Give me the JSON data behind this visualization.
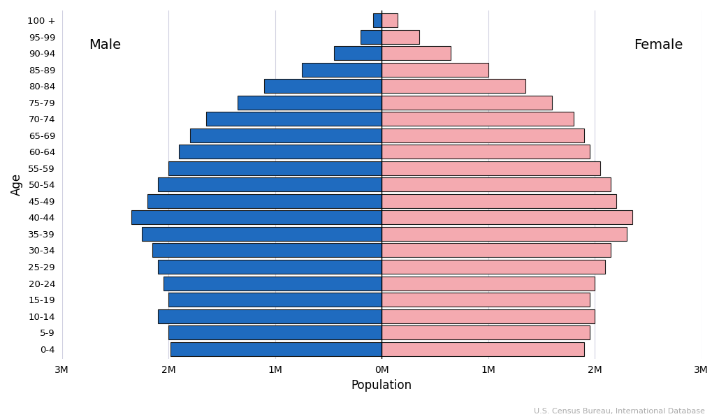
{
  "age_groups": [
    "0-4",
    "5-9",
    "10-14",
    "15-19",
    "20-24",
    "25-29",
    "30-34",
    "35-39",
    "40-44",
    "45-49",
    "50-54",
    "55-59",
    "60-64",
    "65-69",
    "70-74",
    "75-79",
    "80-84",
    "85-89",
    "90-94",
    "95-99",
    "100 +"
  ],
  "male": [
    1980000,
    2000000,
    2100000,
    2000000,
    2050000,
    2100000,
    2150000,
    2250000,
    2350000,
    2200000,
    2100000,
    2000000,
    1900000,
    1800000,
    1650000,
    1350000,
    1100000,
    750000,
    450000,
    200000,
    80000
  ],
  "female": [
    1900000,
    1950000,
    2000000,
    1950000,
    2000000,
    2100000,
    2150000,
    2300000,
    2350000,
    2200000,
    2150000,
    2050000,
    1950000,
    1900000,
    1800000,
    1600000,
    1350000,
    1000000,
    650000,
    350000,
    150000
  ],
  "male_color": "#1f6bbf",
  "female_color": "#f4aab0",
  "bar_edgecolor": "#1a1a1a",
  "bar_linewidth": 0.8,
  "xlabel": "Population",
  "ylabel": "Age",
  "xlim": 3000000,
  "grid_color": "#d0d0e0",
  "annotation": "U.S. Census Bureau, International Database",
  "male_label": "Male",
  "female_label": "Female"
}
